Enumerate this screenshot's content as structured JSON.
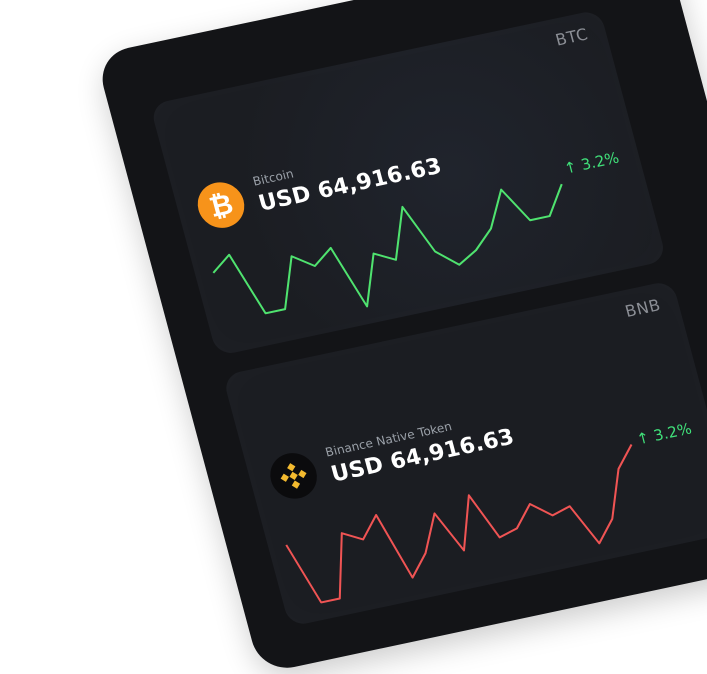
{
  "cards": [
    {
      "ticker": "BTC",
      "name": "Bitcoin",
      "price": "USD 64,916.63",
      "change": "↑ 3.2%",
      "icon": "bitcoin-icon",
      "line_color": "#4fe36f",
      "values": [
        36,
        44,
        8,
        8,
        36,
        28,
        36,
        0,
        28,
        22,
        50,
        22,
        12,
        18,
        28,
        48,
        28,
        28,
        44
      ]
    },
    {
      "ticker": "BNB",
      "name": "Binance Native Token",
      "price": "USD 64,916.63",
      "change": "↑ 3.2%",
      "icon": "binance-icon",
      "line_color": "#f05454",
      "values": [
        34,
        10,
        10,
        34,
        30,
        38,
        12,
        20,
        34,
        18,
        38,
        20,
        22,
        30,
        24,
        26,
        10,
        18,
        36,
        44
      ]
    }
  ]
}
